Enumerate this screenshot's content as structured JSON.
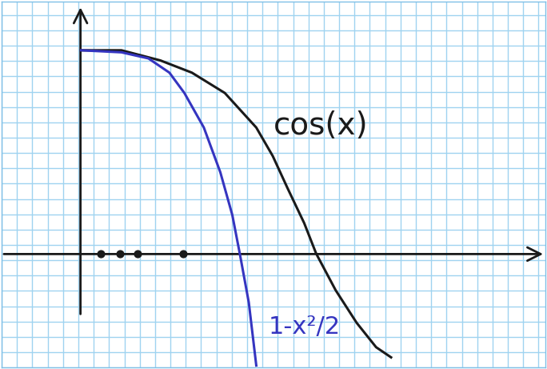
{
  "chart_data": {
    "type": "line",
    "xlim": [
      -0.53,
      3.1
    ],
    "ylim": [
      -0.56,
      1.24
    ],
    "xticks": [],
    "yticks": [],
    "tick_labels": false,
    "grid": true,
    "series": [
      {
        "name": "cos(x)",
        "color": "#1a1a1a",
        "line_style": "solid",
        "x": [
          0,
          0.27,
          0.53,
          0.74,
          0.96,
          1.17,
          1.28,
          1.38,
          1.49,
          1.57,
          1.7,
          1.84,
          1.97,
          2.07
        ],
        "values": [
          1.0,
          1.0,
          0.95,
          0.89,
          0.79,
          0.62,
          0.48,
          0.32,
          0.15,
          0.0,
          -0.18,
          -0.34,
          -0.46,
          -0.51
        ]
      },
      {
        "name": "1-x²/2",
        "color": "#3535c0",
        "line_style": "solid",
        "x": [
          0,
          0.27,
          0.45,
          0.59,
          0.69,
          0.82,
          0.93,
          1.01,
          1.06,
          1.12,
          1.17
        ],
        "values": [
          1.0,
          0.99,
          0.96,
          0.89,
          0.79,
          0.62,
          0.4,
          0.19,
          0.0,
          -0.24,
          -0.55
        ]
      },
      {
        "type": "scatter",
        "marker": "o",
        "color": "#1a1a1a",
        "x": [
          0.13,
          0.26,
          0.38,
          0.68
        ],
        "values": [
          0,
          0,
          0,
          0
        ]
      }
    ]
  }
}
